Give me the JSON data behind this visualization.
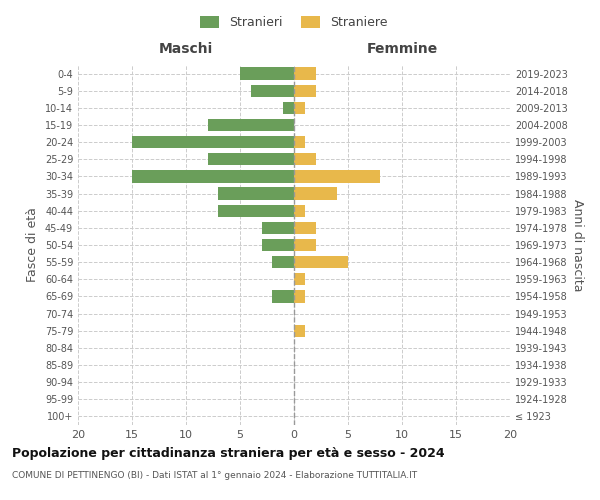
{
  "age_groups": [
    "100+",
    "95-99",
    "90-94",
    "85-89",
    "80-84",
    "75-79",
    "70-74",
    "65-69",
    "60-64",
    "55-59",
    "50-54",
    "45-49",
    "40-44",
    "35-39",
    "30-34",
    "25-29",
    "20-24",
    "15-19",
    "10-14",
    "5-9",
    "0-4"
  ],
  "birth_years": [
    "≤ 1923",
    "1924-1928",
    "1929-1933",
    "1934-1938",
    "1939-1943",
    "1944-1948",
    "1949-1953",
    "1954-1958",
    "1959-1963",
    "1964-1968",
    "1969-1973",
    "1974-1978",
    "1979-1983",
    "1984-1988",
    "1989-1993",
    "1994-1998",
    "1999-2003",
    "2004-2008",
    "2009-2013",
    "2014-2018",
    "2019-2023"
  ],
  "males": [
    0,
    0,
    0,
    0,
    0,
    0,
    0,
    2,
    0,
    2,
    3,
    3,
    7,
    7,
    15,
    8,
    15,
    8,
    1,
    4,
    5
  ],
  "females": [
    0,
    0,
    0,
    0,
    0,
    1,
    0,
    1,
    1,
    5,
    2,
    2,
    1,
    4,
    8,
    2,
    1,
    0,
    1,
    2,
    2
  ],
  "male_color": "#6a9e5a",
  "female_color": "#e8b84b",
  "background_color": "#ffffff",
  "grid_color": "#cccccc",
  "title": "Popolazione per cittadinanza straniera per età e sesso - 2024",
  "subtitle": "COMUNE DI PETTINENGO (BI) - Dati ISTAT al 1° gennaio 2024 - Elaborazione TUTTITALIA.IT",
  "ylabel_left": "Fasce di età",
  "ylabel_right": "Anni di nascita",
  "xlabel_left": "Maschi",
  "xlabel_right": "Femmine",
  "legend_male": "Stranieri",
  "legend_female": "Straniere",
  "xlim": 20,
  "bar_height": 0.72
}
